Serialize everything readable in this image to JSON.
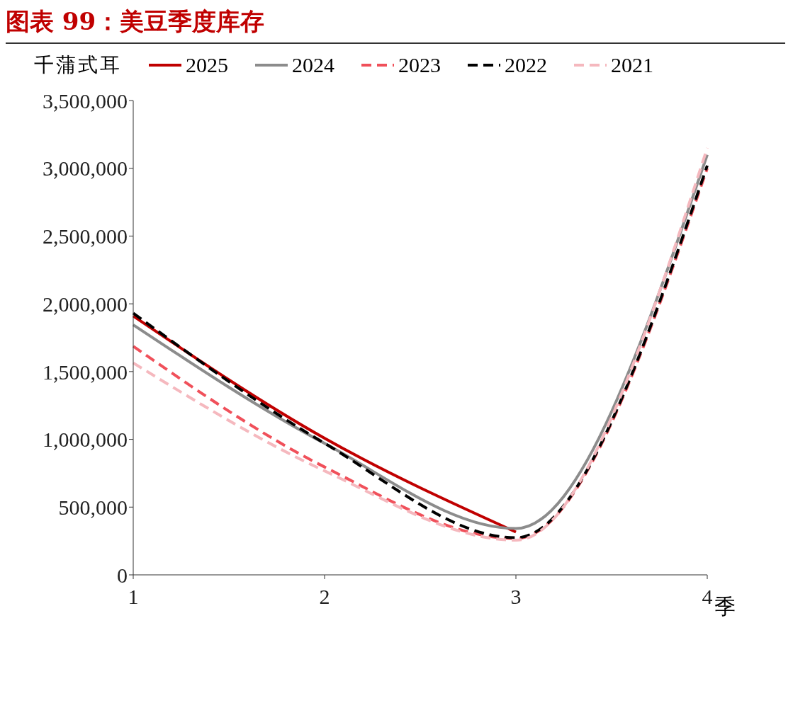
{
  "chart_data": {
    "type": "line",
    "title": "图表 99：美豆季度库存",
    "ylabel": "千蒲式耳",
    "xlabel": "季",
    "categories": [
      "1",
      "2",
      "3",
      "4"
    ],
    "series": [
      {
        "name": "2025",
        "color": "#c00000",
        "line_style": "solid",
        "values": [
          1910000,
          1008000,
          316000,
          null
        ]
      },
      {
        "name": "2024",
        "color": "#8c8c8c",
        "line_style": "solid",
        "values": [
          1845000,
          970000,
          342000,
          3100000
        ]
      },
      {
        "name": "2023",
        "color": "#f0505a",
        "line_style": "dashed",
        "values": [
          1687000,
          796000,
          268000,
          3000000
        ]
      },
      {
        "name": "2022",
        "color": "#000000",
        "line_style": "dashed",
        "values": [
          1931000,
          971000,
          274000,
          3020000
        ]
      },
      {
        "name": "2021",
        "color": "#f5b8be",
        "line_style": "dashed",
        "values": [
          1564000,
          767000,
          256000,
          3150000
        ]
      }
    ],
    "ylim": [
      0,
      3500000
    ],
    "yticks": [
      {
        "value": 0,
        "label": "0"
      },
      {
        "value": 500000,
        "label": "500,000"
      },
      {
        "value": 1000000,
        "label": "1,000,000"
      },
      {
        "value": 1500000,
        "label": "1,500,000"
      },
      {
        "value": 2000000,
        "label": "2,000,000"
      },
      {
        "value": 2500000,
        "label": "2,500,000"
      },
      {
        "value": 3000000,
        "label": "3,000,000"
      },
      {
        "value": 3500000,
        "label": "3,500,000"
      }
    ],
    "grid": false,
    "legend": "top",
    "marker": "none"
  }
}
